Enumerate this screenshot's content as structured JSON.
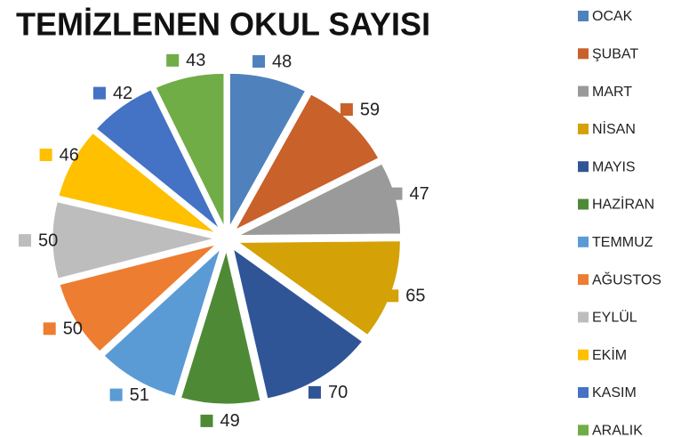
{
  "chart_data": {
    "type": "pie",
    "title": "TEMİZLENEN OKUL SAYISI",
    "categories": [
      "OCAK",
      "ŞUBAT",
      "MART",
      "NİSAN",
      "MAYIS",
      "HAZİRAN",
      "TEMMUZ",
      "AĞUSTOS",
      "EYLÜL",
      "EKİM",
      "KASIM",
      "ARALIK"
    ],
    "values": [
      48,
      59,
      47,
      65,
      70,
      49,
      51,
      50,
      50,
      46,
      42,
      43
    ],
    "colors": [
      "#4f81bd",
      "#c8612a",
      "#9a9a9a",
      "#d4a106",
      "#2f5597",
      "#4e8a35",
      "#5b9bd5",
      "#ed7d31",
      "#bdbdbd",
      "#ffc000",
      "#4472c4",
      "#70ad47"
    ],
    "legend": "right"
  }
}
